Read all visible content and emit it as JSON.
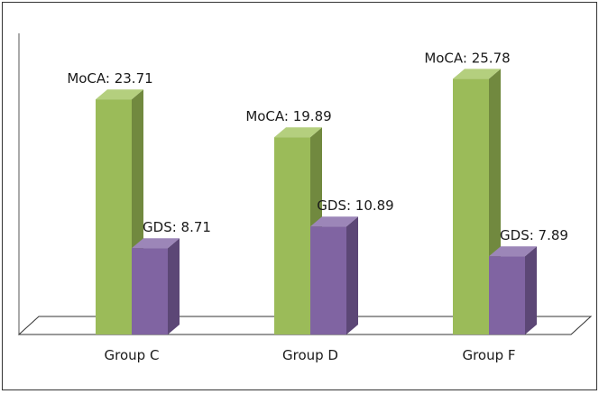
{
  "chart_data": {
    "type": "bar",
    "style": "3d-clustered-column",
    "categories": [
      "Group C",
      "Group D",
      "Group F"
    ],
    "series": [
      {
        "key": "moca",
        "values": [
          23.71,
          19.89,
          25.78
        ],
        "labels": [
          "MoCA: 23.71",
          "MoCA: 19.89",
          "MoCA: 25.78"
        ]
      },
      {
        "key": "gds",
        "values": [
          8.71,
          10.89,
          7.89
        ],
        "labels": [
          "GDS: 8.71",
          "GDS: 10.89",
          "GDS: 7.89"
        ]
      }
    ],
    "colors": {
      "moca_front": "#9bbb59",
      "moca_side": "#71893f",
      "moca_top": "#b4cf7e",
      "gds_front": "#8064a2",
      "gds_side": "#5c4776",
      "gds_top": "#9c86b8"
    },
    "ylim": [
      0,
      30
    ],
    "grid": false,
    "legend": "none"
  }
}
